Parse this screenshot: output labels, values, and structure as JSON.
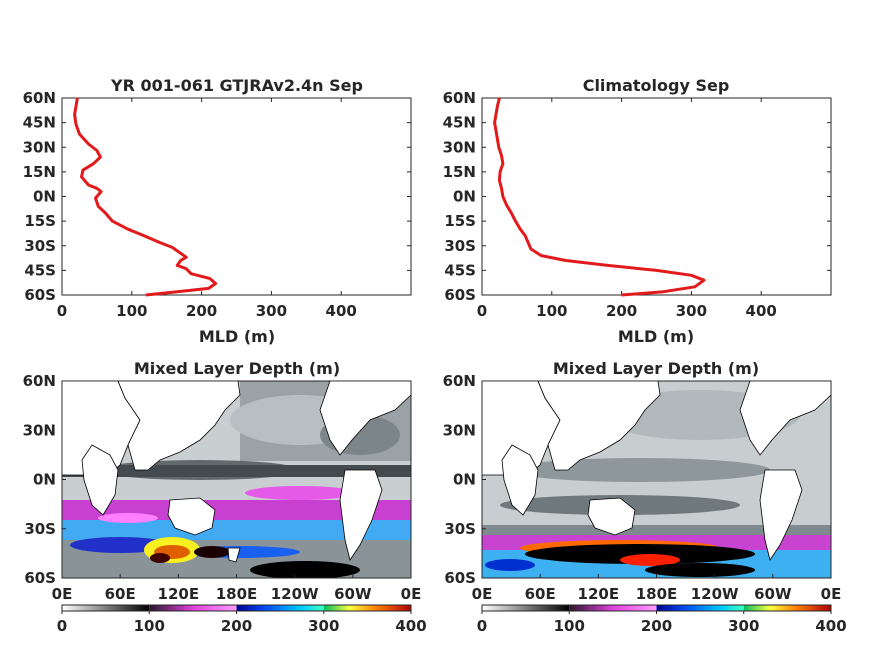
{
  "chart_data": [
    {
      "type": "line",
      "title": "YR 001-061 GTJRAv2.4n Sep",
      "xlabel": "MLD (m)",
      "ylabel": "",
      "xlim": [
        0,
        500
      ],
      "ylim": [
        -60,
        60
      ],
      "xticks": [
        "0",
        "100",
        "200",
        "300",
        "400"
      ],
      "yticks": [
        "60N",
        "45N",
        "30N",
        "15N",
        "0N",
        "15S",
        "30S",
        "45S",
        "60S"
      ],
      "grid": false,
      "series": [
        {
          "color": "#e31a1c",
          "x": [
            120,
            165,
            210,
            220,
            212,
            185,
            178,
            165,
            170,
            178,
            168,
            158,
            140,
            118,
            95,
            72,
            62,
            52,
            48,
            56,
            50,
            38,
            28,
            30,
            45,
            55,
            50,
            38,
            25,
            20,
            18,
            20,
            22
          ],
          "y": [
            -60,
            -58,
            -56,
            -53,
            -50,
            -47,
            -44,
            -42,
            -39,
            -37,
            -34,
            -31,
            -28,
            -24,
            -20,
            -15,
            -10,
            -6,
            -1,
            3,
            5,
            7,
            12,
            16,
            20,
            24,
            28,
            32,
            38,
            44,
            50,
            55,
            60
          ]
        }
      ]
    },
    {
      "type": "line",
      "title": "Climatology Sep",
      "xlabel": "MLD (m)",
      "ylabel": "",
      "xlim": [
        0,
        500
      ],
      "ylim": [
        -60,
        60
      ],
      "xticks": [
        "0",
        "100",
        "200",
        "300",
        "400"
      ],
      "yticks": [
        "60N",
        "45N",
        "30N",
        "15N",
        "0N",
        "15S",
        "30S",
        "45S",
        "60S"
      ],
      "grid": false,
      "series": [
        {
          "color": "#e31a1c",
          "x": [
            200,
            260,
            305,
            318,
            300,
            250,
            180,
            120,
            85,
            70,
            66,
            62,
            55,
            48,
            42,
            35,
            30,
            28,
            25,
            26,
            30,
            28,
            24,
            22,
            20,
            18,
            20,
            22,
            25
          ],
          "y": [
            -60,
            -58,
            -55,
            -51,
            -48,
            -45,
            -42,
            -39,
            -36,
            -32,
            -28,
            -24,
            -20,
            -15,
            -10,
            -5,
            0,
            5,
            10,
            15,
            20,
            25,
            30,
            35,
            40,
            45,
            50,
            55,
            60
          ]
        }
      ]
    },
    {
      "type": "heatmap",
      "title": "Mixed Layer Depth (m)",
      "xticks": [
        "0E",
        "60E",
        "120E",
        "180E",
        "120W",
        "60W",
        "0E"
      ],
      "yticks": [
        "60N",
        "30N",
        "0N",
        "30S",
        "60S"
      ],
      "colorbar": {
        "ticks": [
          "0",
          "100",
          "200",
          "300",
          "400"
        ],
        "range": [
          0,
          400
        ]
      }
    },
    {
      "type": "heatmap",
      "title": "Mixed Layer Depth (m)",
      "xticks": [
        "0E",
        "60E",
        "120E",
        "180E",
        "120W",
        "60W",
        "0E"
      ],
      "yticks": [
        "60N",
        "30N",
        "0N",
        "30S",
        "60S"
      ],
      "colorbar": {
        "ticks": [
          "0",
          "100",
          "200",
          "300",
          "400"
        ],
        "range": [
          0,
          400
        ]
      }
    }
  ]
}
